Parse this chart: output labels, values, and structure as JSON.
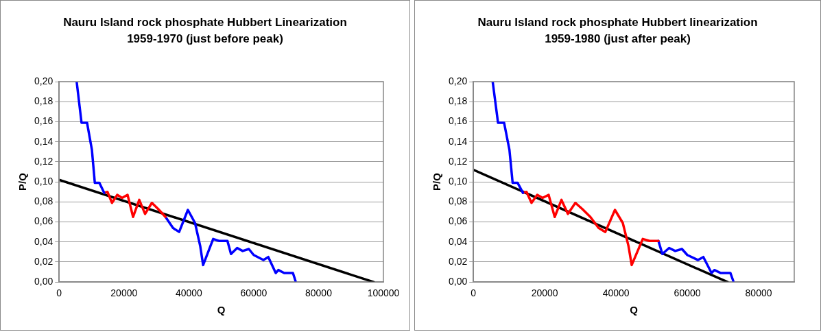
{
  "chart_data": [
    {
      "type": "line",
      "title": "Nauru Island rock phosphate Hubbert Linearization 1959-1970 (just before peak)",
      "xlabel": "Q",
      "ylabel": "P/Q",
      "xlim": [
        0,
        100000
      ],
      "xticks": [
        0,
        20000,
        40000,
        60000,
        80000,
        100000
      ],
      "ylim": [
        0,
        0.2
      ],
      "yticks": [
        {
          "value": 0,
          "label": "0,00"
        },
        {
          "value": 0.02,
          "label": "0,02"
        },
        {
          "value": 0.04,
          "label": "0,04"
        },
        {
          "value": 0.06,
          "label": "0,06"
        },
        {
          "value": 0.08,
          "label": "0,08"
        },
        {
          "value": 0.1,
          "label": "0,10"
        },
        {
          "value": 0.12,
          "label": "0,12"
        },
        {
          "value": 0.14,
          "label": "0,14"
        },
        {
          "value": 0.16,
          "label": "0,16"
        },
        {
          "value": 0.18,
          "label": "0,18"
        },
        {
          "value": 0.2,
          "label": "0,20"
        }
      ],
      "grid": "y",
      "series": [
        {
          "color": "#0000ff",
          "x": [
            5400,
            6900,
            8600,
            10100,
            11000,
            12400,
            13900
          ],
          "values": [
            0.2,
            0.159,
            0.159,
            0.132,
            0.099,
            0.099,
            0.089
          ]
        },
        {
          "color": "#ff0000",
          "x": [
            13900,
            14900,
            16300,
            17900,
            19400,
            21100,
            22800,
            24700,
            26500,
            28600,
            30500,
            32800
          ],
          "values": [
            0.089,
            0.09,
            0.079,
            0.087,
            0.084,
            0.087,
            0.065,
            0.082,
            0.068,
            0.079,
            0.073,
            0.065
          ]
        },
        {
          "color": "#0000ff",
          "x": [
            32800,
            35100,
            37000,
            39700,
            41900,
            43500,
            44400,
            47500,
            49400,
            51900,
            53000,
            54900,
            56600,
            58500,
            60000,
            63000,
            64500,
            66800,
            67600,
            69400,
            71400,
            72100,
            72900
          ],
          "values": [
            0.065,
            0.054,
            0.05,
            0.072,
            0.059,
            0.036,
            0.017,
            0.043,
            0.041,
            0.041,
            0.028,
            0.034,
            0.031,
            0.033,
            0.027,
            0.022,
            0.025,
            0.009,
            0.012,
            0.009,
            0.009,
            0.009,
            0.001
          ]
        },
        {
          "color": "#000000",
          "x": [
            0,
            97000
          ],
          "values": [
            0.102,
            0
          ]
        }
      ]
    },
    {
      "type": "line",
      "title": "Nauru Island rock phosphate Hubbert linearization 1959-1980 (just after peak)",
      "xlabel": "Q",
      "ylabel": "P/Q",
      "xlim": [
        0,
        90000
      ],
      "xticks": [
        0,
        20000,
        40000,
        60000,
        80000
      ],
      "ylim": [
        0,
        0.2
      ],
      "yticks": [
        {
          "value": 0,
          "label": "0,00"
        },
        {
          "value": 0.02,
          "label": "0,02"
        },
        {
          "value": 0.04,
          "label": "0,04"
        },
        {
          "value": 0.06,
          "label": "0,06"
        },
        {
          "value": 0.08,
          "label": "0,08"
        },
        {
          "value": 0.1,
          "label": "0,10"
        },
        {
          "value": 0.12,
          "label": "0,12"
        },
        {
          "value": 0.14,
          "label": "0,14"
        },
        {
          "value": 0.16,
          "label": "0,16"
        },
        {
          "value": 0.18,
          "label": "0,18"
        },
        {
          "value": 0.2,
          "label": "0,20"
        }
      ],
      "grid": "y",
      "series": [
        {
          "color": "#0000ff",
          "x": [
            5400,
            6900,
            8600,
            10100,
            11000,
            12400,
            13900
          ],
          "values": [
            0.2,
            0.159,
            0.159,
            0.132,
            0.099,
            0.099,
            0.089
          ]
        },
        {
          "color": "#ff0000",
          "x": [
            13900,
            14900,
            16300,
            17900,
            19400,
            21100,
            22800,
            24700,
            26500,
            28600,
            30500,
            32800,
            35100,
            37000,
            39700,
            41900,
            43500,
            44400,
            47500,
            49400,
            51900
          ],
          "values": [
            0.089,
            0.09,
            0.079,
            0.087,
            0.084,
            0.087,
            0.065,
            0.082,
            0.068,
            0.079,
            0.073,
            0.065,
            0.054,
            0.05,
            0.072,
            0.059,
            0.036,
            0.017,
            0.043,
            0.041,
            0.041
          ]
        },
        {
          "color": "#0000ff",
          "x": [
            51900,
            53000,
            54900,
            56600,
            58500,
            60000,
            63000,
            64500,
            66800,
            67600,
            69400,
            71400,
            72100,
            72900
          ],
          "values": [
            0.041,
            0.028,
            0.034,
            0.031,
            0.033,
            0.027,
            0.022,
            0.025,
            0.009,
            0.012,
            0.009,
            0.009,
            0.009,
            0.001
          ]
        },
        {
          "color": "#000000",
          "x": [
            0,
            71300
          ],
          "values": [
            0.112,
            0
          ]
        }
      ]
    }
  ]
}
